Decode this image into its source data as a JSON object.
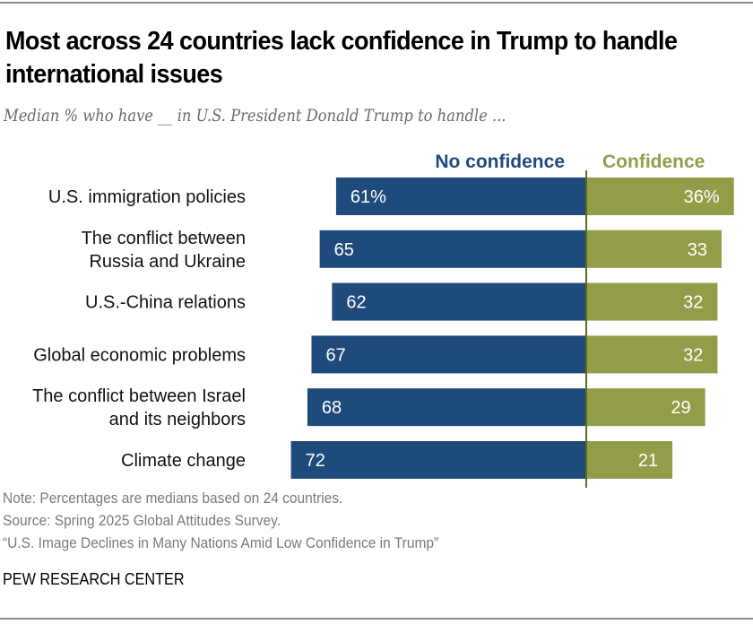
{
  "header": {
    "title": "Most across 24 countries lack confidence in Trump to handle international issues",
    "subtitle": "Median % who have __ in U.S. President Donald Trump to handle ..."
  },
  "chart_data": {
    "type": "bar",
    "orientation": "horizontal-diverging",
    "title": "Most across 24 countries lack confidence in Trump to handle international issues",
    "subtitle": "Median % who have __ in U.S. President Donald Trump to handle ...",
    "xlabel": "",
    "ylabel": "",
    "unit": "%",
    "grid": false,
    "legend_position": "top",
    "categories": [
      [
        "U.S. immigration policies"
      ],
      [
        "The conflict between",
        "Russia and Ukraine"
      ],
      [
        "U.S.-China relations"
      ],
      [
        "Global economic problems"
      ],
      [
        "The conflict between Israel",
        "and its neighbors"
      ],
      [
        "Climate change"
      ]
    ],
    "series": [
      {
        "name": "No confidence",
        "color": "#1f4a7c",
        "direction": "left",
        "values": [
          61,
          65,
          62,
          67,
          68,
          72
        ],
        "labels": [
          "61%",
          "65",
          "62",
          "67",
          "68",
          "72"
        ]
      },
      {
        "name": "Confidence",
        "color": "#939d48",
        "direction": "right",
        "values": [
          36,
          33,
          32,
          32,
          29,
          21
        ],
        "labels": [
          "36%",
          "33",
          "32",
          "32",
          "29",
          "21"
        ]
      }
    ],
    "axis_color": "#5c6a2a"
  },
  "footer": {
    "note": "Note: Percentages are medians based on 24 countries.",
    "source": "Source: Spring 2025 Global Attitudes Survey.",
    "report": "“U.S. Image Declines in Many Nations Amid Low Confidence in Trump”",
    "brand": "PEW RESEARCH CENTER"
  }
}
